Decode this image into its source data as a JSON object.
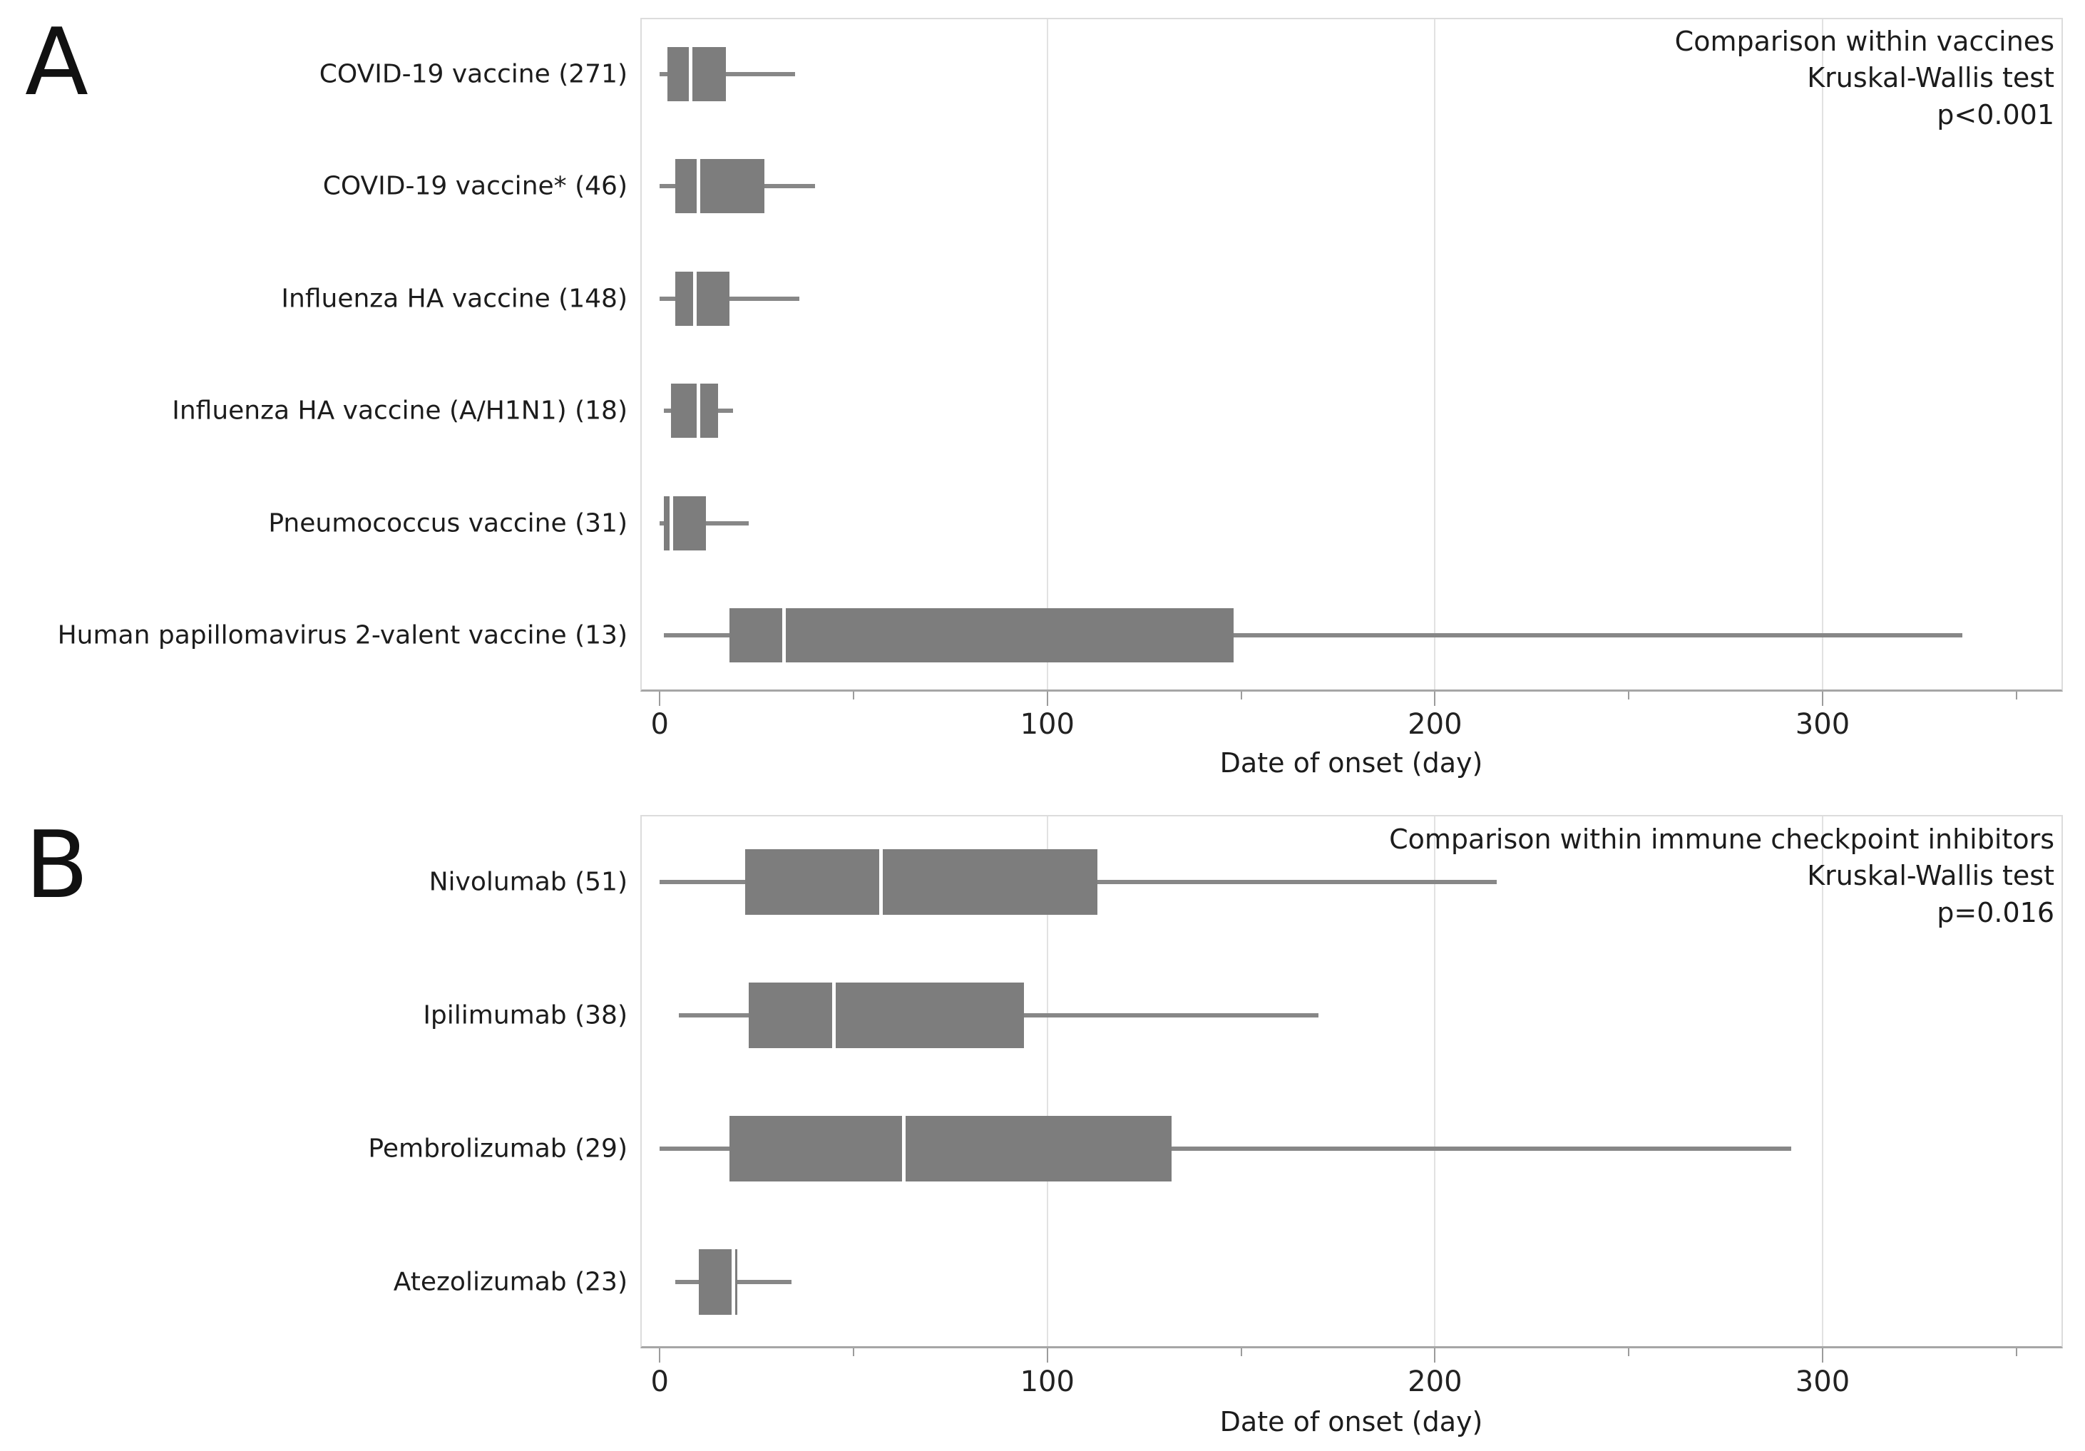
{
  "figure_title": "",
  "colors": {
    "box_fill": "#7d7d7d",
    "whisker": "#878787",
    "median_line": "#ffffff",
    "gridline": "#e2e2e2",
    "plot_frame": "#dcdcdc",
    "axis_line": "#a6a6a6",
    "tick": "#9c9c9c",
    "text": "#1c1c1c"
  },
  "chart_data": [
    {
      "type": "boxplot",
      "orientation": "horizontal",
      "panel_letter": "A",
      "annotation_lines": [
        "Comparison within vaccines",
        "Kruskal-Wallis test",
        "p<0.001"
      ],
      "xlabel": "Date of onset (day)",
      "xlim": [
        -5,
        362
      ],
      "xticks_major": [
        0,
        100,
        200,
        300
      ],
      "xtick_labels": [
        "0",
        "100",
        "200",
        "300"
      ],
      "xticks_minor": [
        50,
        150,
        250,
        350
      ],
      "grid_x": [
        100,
        200,
        300
      ],
      "grid": true,
      "legend": false,
      "rows": [
        {
          "label": "COVID-19 vaccine (271)",
          "n": 271,
          "min": 0,
          "q1": 2,
          "median": 8,
          "q3": 17,
          "max": 35
        },
        {
          "label": "COVID-19 vaccine* (46)",
          "n": 46,
          "min": 0,
          "q1": 4,
          "median": 10,
          "q3": 27,
          "max": 40
        },
        {
          "label": "Influenza HA vaccine (148)",
          "n": 148,
          "min": 0,
          "q1": 4,
          "median": 9,
          "q3": 18,
          "max": 36
        },
        {
          "label": "Influenza HA vaccine (A/H1N1) (18)",
          "n": 18,
          "min": 1,
          "q1": 3,
          "median": 10,
          "q3": 15,
          "max": 19
        },
        {
          "label": "Pneumococcus vaccine (31)",
          "n": 31,
          "min": 0,
          "q1": 1,
          "median": 3,
          "q3": 12,
          "max": 23
        },
        {
          "label": "Human papillomavirus 2-valent vaccine (13)",
          "n": 13,
          "min": 1,
          "q1": 18,
          "median": 32,
          "q3": 148,
          "max": 336
        }
      ]
    },
    {
      "type": "boxplot",
      "orientation": "horizontal",
      "panel_letter": "B",
      "annotation_lines": [
        "Comparison within immune checkpoint inhibitors",
        "Kruskal-Wallis test",
        "p=0.016"
      ],
      "xlabel": "Date of onset (day)",
      "xlim": [
        -5,
        362
      ],
      "xticks_major": [
        0,
        100,
        200,
        300
      ],
      "xtick_labels": [
        "0",
        "100",
        "200",
        "300"
      ],
      "xticks_minor": [
        50,
        150,
        250,
        350
      ],
      "grid_x": [
        100,
        200,
        300
      ],
      "grid": true,
      "legend": false,
      "rows": [
        {
          "label": "Nivolumab (51)",
          "n": 51,
          "min": 0,
          "q1": 22,
          "median": 57,
          "q3": 113,
          "max": 216
        },
        {
          "label": "Ipilimumab (38)",
          "n": 38,
          "min": 5,
          "q1": 23,
          "median": 45,
          "q3": 94,
          "max": 170
        },
        {
          "label": "Pembrolizumab (29)",
          "n": 29,
          "min": 0,
          "q1": 18,
          "median": 63,
          "q3": 132,
          "max": 292
        },
        {
          "label": "Atezolizumab (23)",
          "n": 23,
          "min": 4,
          "q1": 10,
          "median": 19,
          "q3": 20,
          "max": 34
        }
      ]
    }
  ]
}
